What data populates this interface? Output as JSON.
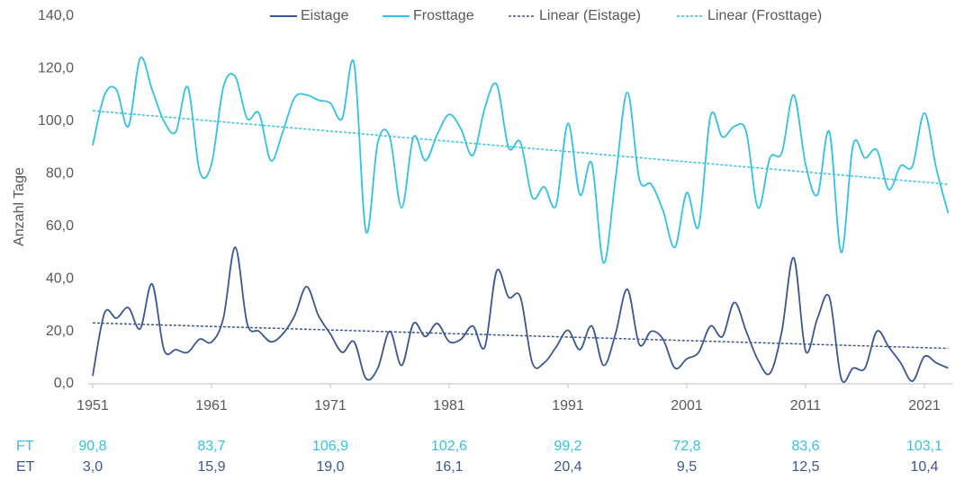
{
  "chart_data": {
    "type": "line",
    "y_axis_label": "Anzahl Tage",
    "x": [
      1951,
      1952,
      1953,
      1954,
      1955,
      1956,
      1957,
      1958,
      1959,
      1960,
      1961,
      1962,
      1963,
      1964,
      1965,
      1966,
      1967,
      1968,
      1969,
      1970,
      1971,
      1972,
      1973,
      1974,
      1975,
      1976,
      1977,
      1978,
      1979,
      1980,
      1981,
      1982,
      1983,
      1984,
      1985,
      1986,
      1987,
      1988,
      1989,
      1990,
      1991,
      1992,
      1993,
      1994,
      1995,
      1996,
      1997,
      1998,
      1999,
      2000,
      2001,
      2002,
      2003,
      2004,
      2005,
      2006,
      2007,
      2008,
      2009,
      2010,
      2011,
      2012,
      2013,
      2014,
      2015,
      2016,
      2017,
      2018,
      2019,
      2020,
      2021,
      2022,
      2023
    ],
    "series": [
      {
        "name": "Eistage",
        "color": "#3a5795",
        "values": [
          3.0,
          27,
          25,
          29,
          21,
          38,
          13,
          13,
          12,
          17,
          15.9,
          25,
          52,
          23,
          20,
          16,
          19,
          26,
          37,
          26,
          19.0,
          12,
          16,
          2,
          6,
          20,
          7,
          23,
          18,
          23,
          16.1,
          17,
          22,
          14,
          43,
          33,
          33,
          8,
          8,
          14,
          20.4,
          13,
          22,
          7,
          19,
          36,
          15,
          20,
          17,
          6,
          9.5,
          12,
          22,
          18,
          31,
          20,
          9,
          4,
          20,
          48,
          12.5,
          25,
          33,
          2,
          6,
          6,
          20,
          14,
          8,
          1,
          10.4,
          8,
          6
        ]
      },
      {
        "name": "Frosttage",
        "color": "#31c2e6",
        "values": [
          90.8,
          110,
          112,
          98,
          124,
          112,
          100,
          96,
          113,
          81,
          83.7,
          113,
          117,
          101,
          103,
          85,
          96,
          109,
          110,
          108,
          106.9,
          101,
          122,
          58,
          92,
          94,
          67,
          94,
          85,
          95,
          102.6,
          97,
          87,
          105,
          114,
          90,
          92,
          71,
          75,
          68,
          99.2,
          72,
          84,
          46,
          78,
          111,
          78,
          76,
          66,
          52,
          72.8,
          60,
          102,
          94,
          98,
          96,
          67,
          86,
          88,
          110,
          83.6,
          72,
          96,
          50,
          91,
          86,
          89,
          74,
          83,
          83,
          103.1,
          82,
          65
        ]
      },
      {
        "name": "Linear (Eistage)",
        "color": "#3a5795",
        "dashed": true,
        "x": [
          1951,
          2023
        ],
        "values": [
          23.2,
          13.5
        ]
      },
      {
        "name": "Linear (Frosttage)",
        "color": "#31c2e6",
        "dashed": true,
        "x": [
          1951,
          2023
        ],
        "values": [
          104,
          76
        ]
      }
    ],
    "xlim": [
      1950.6,
      2023.4
    ],
    "xticks": [
      1951,
      1961,
      1971,
      1981,
      1991,
      2001,
      2011,
      2021
    ],
    "ylim": [
      0,
      140
    ],
    "yticks": [
      {
        "value": 0,
        "label": "0,0"
      },
      {
        "value": 20,
        "label": "20,0"
      },
      {
        "value": 40,
        "label": "40,0"
      },
      {
        "value": 60,
        "label": "60,0"
      },
      {
        "value": 80,
        "label": "80,0"
      },
      {
        "value": 100,
        "label": "100,0"
      },
      {
        "value": 120,
        "label": "120,0"
      },
      {
        "value": 140,
        "label": "140,0"
      }
    ],
    "grid": false,
    "smooth": true,
    "legend": "top",
    "table": {
      "rows": [
        {
          "label": "FT",
          "color": "#31c2e6",
          "cells": [
            "90,8",
            "83,7",
            "106,9",
            "102,6",
            "99,2",
            "72,8",
            "83,6",
            "103,1"
          ]
        },
        {
          "label": "ET",
          "color": "#3a5795",
          "cells": [
            "3,0",
            "15,9",
            "19,0",
            "16,1",
            "20,4",
            "9,5",
            "12,5",
            "10,4"
          ]
        }
      ]
    }
  }
}
